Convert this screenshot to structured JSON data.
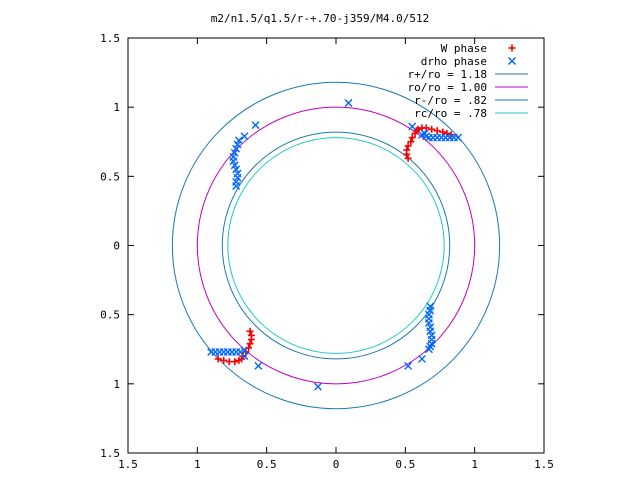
{
  "chart_data": {
    "type": "scatter",
    "title": "m2/n1.5/q1.5/r-+.70-j359/M4.0/512",
    "xlabel": "",
    "ylabel": "",
    "xlim": [
      -1.5,
      1.5
    ],
    "ylim": [
      -1.5,
      1.5
    ],
    "x_ticks": [
      {
        "value": -1.5,
        "label": "1.5"
      },
      {
        "value": -1,
        "label": "1"
      },
      {
        "value": -0.5,
        "label": "0.5"
      },
      {
        "value": 0,
        "label": "0"
      },
      {
        "value": 0.5,
        "label": "0.5"
      },
      {
        "value": 1,
        "label": "1"
      },
      {
        "value": 1.5,
        "label": "1.5"
      }
    ],
    "y_ticks": [
      {
        "value": 1.5,
        "label": "1.5"
      },
      {
        "value": 1,
        "label": "1"
      },
      {
        "value": 0.5,
        "label": "0.5"
      },
      {
        "value": 0,
        "label": "0"
      },
      {
        "value": -0.5,
        "label": "0.5"
      },
      {
        "value": -1,
        "label": "1"
      },
      {
        "value": -1.5,
        "label": "1.5"
      }
    ],
    "grid": false,
    "legend_position": "top-right",
    "series": [
      {
        "name": "W phase",
        "marker": "+",
        "color": "#ff0000",
        "points": [
          [
            0.52,
            0.63
          ],
          [
            0.51,
            0.66
          ],
          [
            0.51,
            0.69
          ],
          [
            0.52,
            0.72
          ],
          [
            0.54,
            0.75
          ],
          [
            0.55,
            0.78
          ],
          [
            0.57,
            0.81
          ],
          [
            0.58,
            0.83
          ],
          [
            0.59,
            0.84
          ],
          [
            0.62,
            0.85
          ],
          [
            0.65,
            0.85
          ],
          [
            0.69,
            0.84
          ],
          [
            0.73,
            0.83
          ],
          [
            0.77,
            0.82
          ],
          [
            0.8,
            0.81
          ],
          [
            0.83,
            0.8
          ],
          [
            -0.62,
            -0.62
          ],
          [
            -0.61,
            -0.65
          ],
          [
            -0.61,
            -0.68
          ],
          [
            -0.62,
            -0.71
          ],
          [
            -0.63,
            -0.74
          ],
          [
            -0.65,
            -0.77
          ],
          [
            -0.67,
            -0.8
          ],
          [
            -0.68,
            -0.82
          ],
          [
            -0.7,
            -0.83
          ],
          [
            -0.73,
            -0.84
          ],
          [
            -0.77,
            -0.84
          ],
          [
            -0.81,
            -0.83
          ],
          [
            -0.85,
            -0.82
          ]
        ]
      },
      {
        "name": "drho phase",
        "marker": "x",
        "color": "#0066ff",
        "points": [
          [
            -0.72,
            0.43
          ],
          [
            -0.72,
            0.46
          ],
          [
            -0.71,
            0.49
          ],
          [
            -0.71,
            0.52
          ],
          [
            -0.72,
            0.55
          ],
          [
            -0.73,
            0.58
          ],
          [
            -0.74,
            0.61
          ],
          [
            -0.74,
            0.64
          ],
          [
            -0.73,
            0.67
          ],
          [
            -0.72,
            0.7
          ],
          [
            -0.71,
            0.73
          ],
          [
            -0.7,
            0.76
          ],
          [
            0.62,
            0.8
          ],
          [
            0.65,
            0.79
          ],
          [
            0.67,
            0.78
          ],
          [
            0.7,
            0.78
          ],
          [
            0.73,
            0.78
          ],
          [
            0.76,
            0.78
          ],
          [
            0.79,
            0.78
          ],
          [
            0.82,
            0.78
          ],
          [
            0.85,
            0.78
          ],
          [
            0.88,
            0.78
          ],
          [
            0.68,
            -0.44
          ],
          [
            0.68,
            -0.47
          ],
          [
            0.67,
            -0.5
          ],
          [
            0.67,
            -0.53
          ],
          [
            0.67,
            -0.56
          ],
          [
            0.68,
            -0.59
          ],
          [
            0.68,
            -0.62
          ],
          [
            0.69,
            -0.65
          ],
          [
            0.69,
            -0.68
          ],
          [
            0.69,
            -0.71
          ],
          [
            0.68,
            -0.73
          ],
          [
            0.67,
            -0.75
          ],
          [
            -0.66,
            -0.76
          ],
          [
            -0.69,
            -0.77
          ],
          [
            -0.72,
            -0.77
          ],
          [
            -0.75,
            -0.77
          ],
          [
            -0.78,
            -0.77
          ],
          [
            -0.81,
            -0.77
          ],
          [
            -0.84,
            -0.77
          ],
          [
            -0.87,
            -0.77
          ],
          [
            -0.9,
            -0.77
          ],
          [
            -0.58,
            0.87
          ],
          [
            0.09,
            1.03
          ],
          [
            0.55,
            0.86
          ],
          [
            0.64,
            0.81
          ],
          [
            -0.66,
            0.79
          ],
          [
            -0.56,
            -0.87
          ],
          [
            -0.13,
            -1.02
          ],
          [
            0.52,
            -0.87
          ],
          [
            0.62,
            -0.82
          ],
          [
            -0.66,
            -0.8
          ]
        ]
      },
      {
        "name": "r+/ro = 1.18",
        "type": "circle",
        "radius": 1.18,
        "color": "#1a7ab5"
      },
      {
        "name": "ro/ro = 1.00",
        "type": "circle",
        "radius": 1.0,
        "color": "#c000c0"
      },
      {
        "name": "r-/ro = .82",
        "type": "circle",
        "radius": 0.82,
        "color": "#1a7ab5"
      },
      {
        "name": "rc/ro = .78",
        "type": "circle",
        "radius": 0.78,
        "color": "#20c8c8"
      }
    ]
  }
}
